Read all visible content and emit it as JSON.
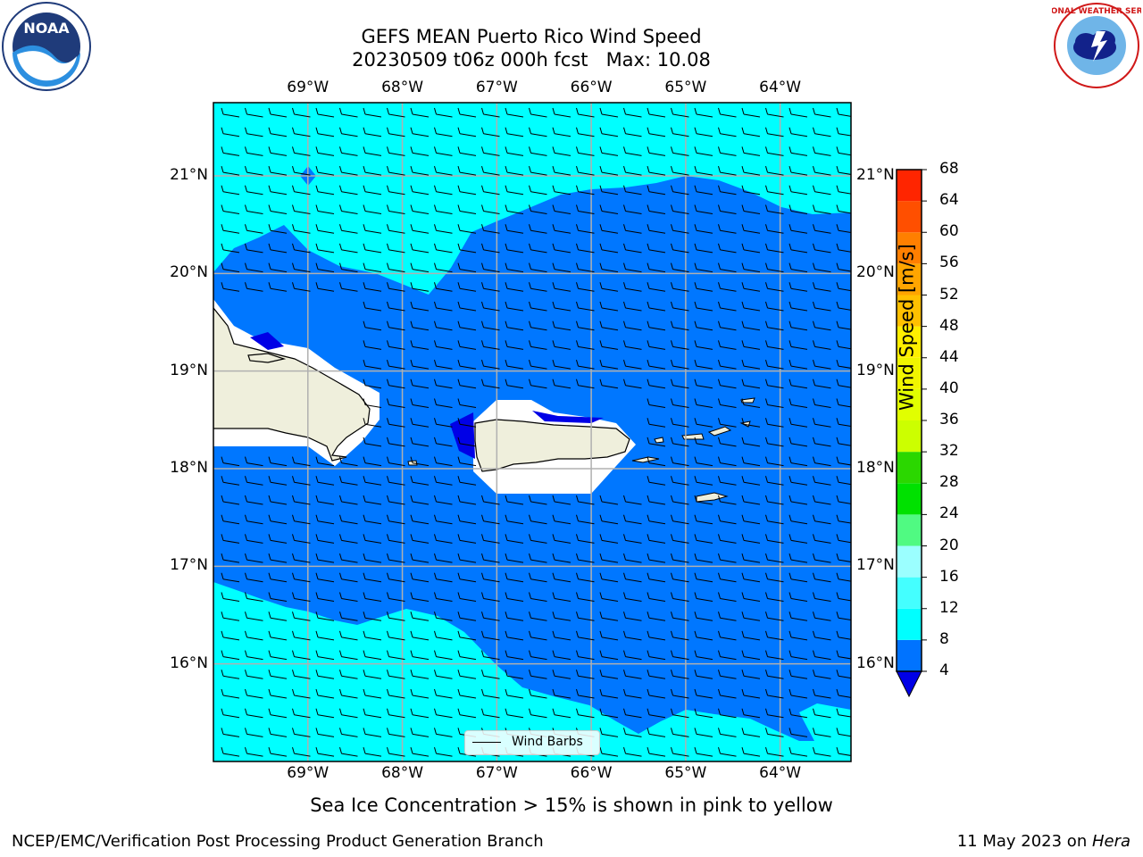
{
  "header": {
    "title_line1": "GEFS MEAN Puerto Rico Wind Speed",
    "title_line2": "20230509 t06z 000h fcst   Max: 10.08"
  },
  "logos": {
    "noaa": {
      "name": "noaa-logo",
      "text": "NOAA"
    },
    "nws": {
      "name": "nws-logo",
      "text": "NATIONAL WEATHER SERVICE"
    }
  },
  "map": {
    "lon_labels": [
      "69°W",
      "68°W",
      "67°W",
      "66°W",
      "65°W",
      "64°W"
    ],
    "lat_labels": [
      "21°N",
      "20°N",
      "19°N",
      "18°N",
      "17°N",
      "16°N"
    ],
    "lon_range": [
      -70.0,
      -63.25
    ],
    "lat_range": [
      15.0,
      21.75
    ],
    "colors": {
      "ocean_light": "#00ffff",
      "ocean_mid": "#0077ff",
      "ocean_dark": "#0000e6",
      "land": "#efefdc",
      "grid": "#b0b0b0"
    },
    "legend_label": "Wind Barbs"
  },
  "colorbar": {
    "title": "Wind Speed [m/s]",
    "tick_labels": [
      "68",
      "64",
      "60",
      "56",
      "52",
      "48",
      "44",
      "40",
      "36",
      "32",
      "28",
      "24",
      "20",
      "16",
      "12",
      "8",
      "4"
    ],
    "levels": [
      4,
      8,
      12,
      16,
      20,
      24,
      28,
      32,
      36,
      40,
      44,
      48,
      52,
      56,
      60,
      64,
      68
    ],
    "colors": [
      "#0073ff",
      "#00ffff",
      "#44ffff",
      "#9bffff",
      "#50fa82",
      "#00e100",
      "#2bd700",
      "#ccff00",
      "#e1ff00",
      "#f0f500",
      "#ffee00",
      "#ffc000",
      "#ffa500",
      "#ff7f00",
      "#ff4f00",
      "#ff2500"
    ],
    "under_color": "#0000e6"
  },
  "footer": {
    "subtitle": "Sea Ice Concentration > 15% is shown in pink to yellow",
    "left": "NCEP/EMC/Verification Post Processing Product Generation Branch",
    "right_date": "11 May 2023 on ",
    "right_host": "Hera"
  }
}
